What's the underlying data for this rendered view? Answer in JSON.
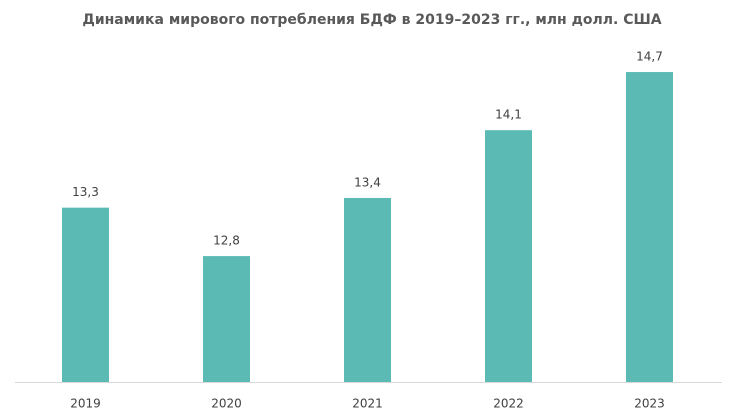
{
  "chart_data": {
    "type": "bar",
    "title": "Динамика мирового потребления БДФ в 2019–2023 гг., млн долл. США",
    "categories": [
      "2019",
      "2020",
      "2021",
      "2022",
      "2023"
    ],
    "values": [
      13.3,
      12.8,
      13.4,
      14.1,
      14.7
    ],
    "value_labels": [
      "13,3",
      "12,8",
      "13,4",
      "14,1",
      "14,7"
    ],
    "color": "#5bbab4",
    "ylim": [
      11.5,
      15
    ]
  }
}
